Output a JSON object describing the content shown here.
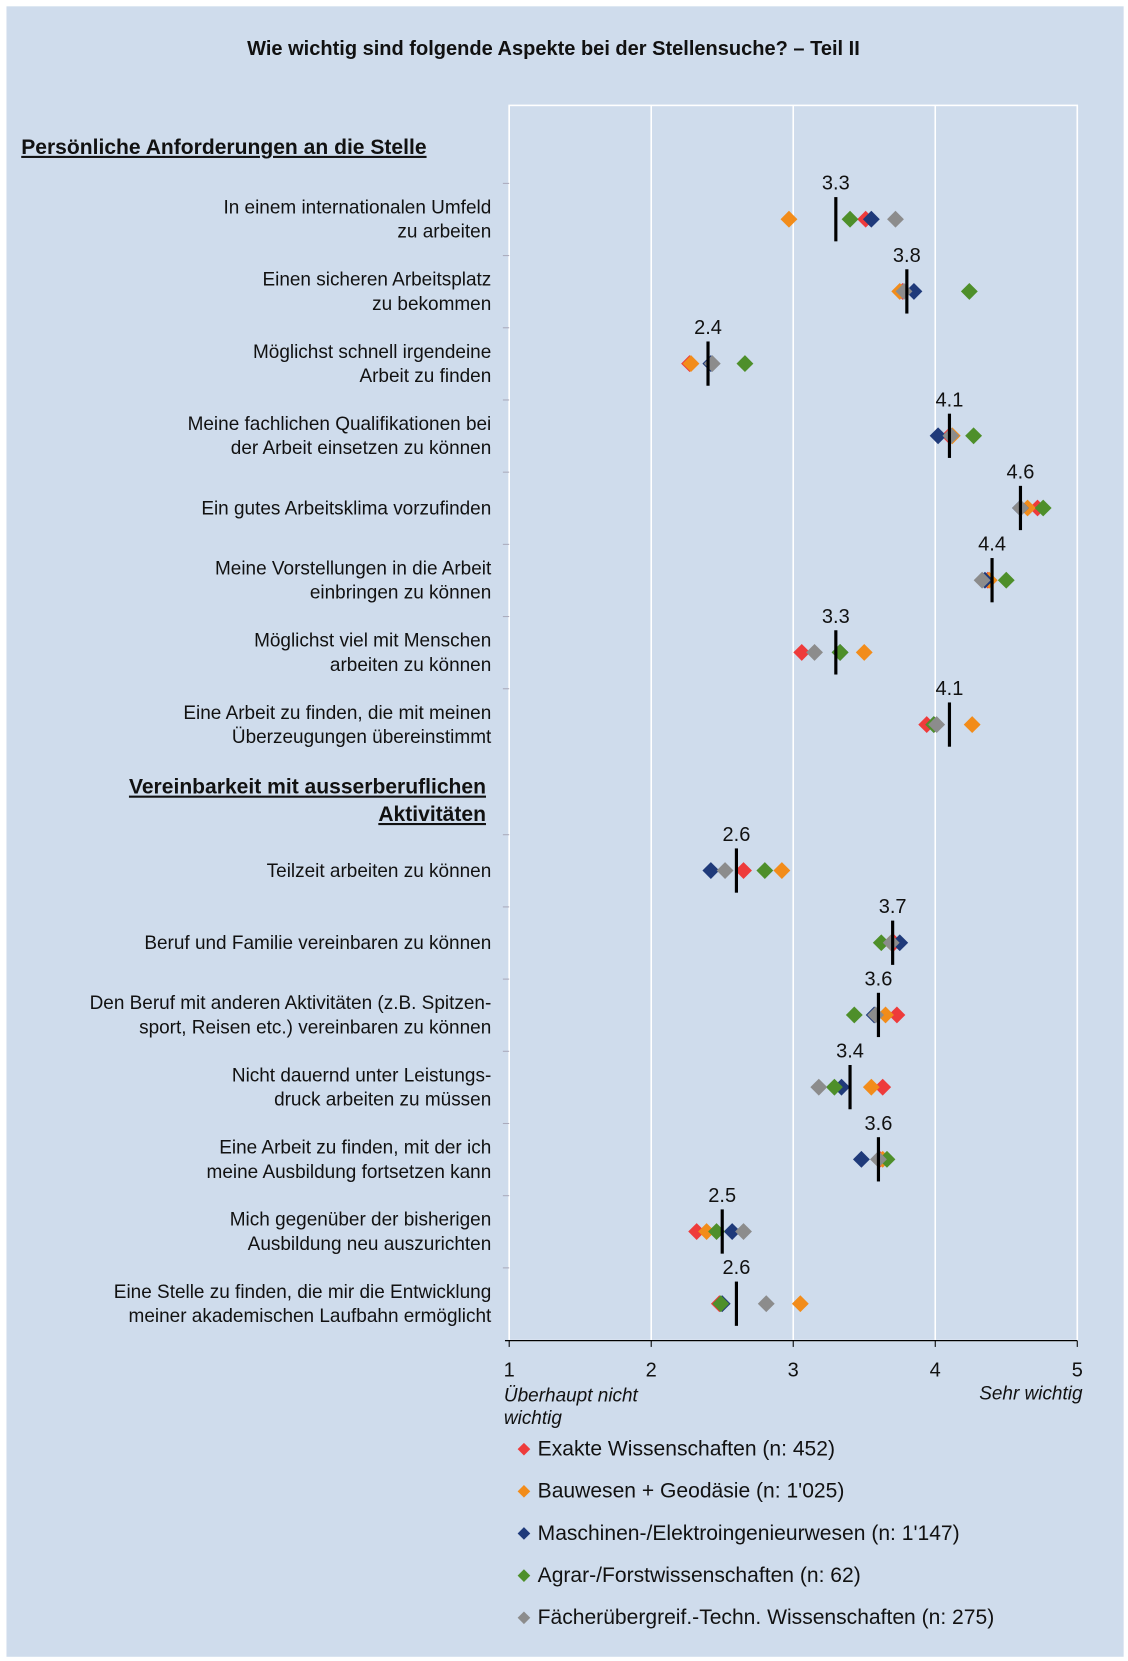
{
  "chart_data": {
    "type": "dot",
    "title": "Wie wichtig sind folgende Aspekte bei der Stellensuche? – Teil II",
    "groups": [
      {
        "label": "Persönliche Anforderungen an die Stelle",
        "categories": [
          "In einem internationalen Umfeld\nzu arbeiten",
          "Einen sicheren Arbeitsplatz\nzu bekommen",
          "Möglichst schnell irgendeine\nArbeit zu finden",
          "Meine fachlichen Qualifikationen bei\nder Arbeit einsetzen zu  können",
          "Ein gutes Arbeitsklima vorzufinden",
          "Meine Vorstellungen in die Arbeit\neinbringen zu können",
          "Möglichst viel mit Menschen\narbeiten zu können",
          "Eine Arbeit zu finden, die mit meinen\nÜberzeugungen übereinstimmt"
        ]
      },
      {
        "label": "Vereinbarkeit mit ausserberuflichen\nAktivitäten",
        "categories": [
          "Teilzeit arbeiten zu können",
          "Beruf und Familie vereinbaren zu können",
          "Den Beruf mit anderen Aktivitäten (z.B. Spitzen-\nsport, Reisen etc.) vereinbaren zu können",
          "Nicht dauernd unter Leistungs-\ndruck arbeiten zu müssen",
          "Eine Arbeit zu finden, mit der ich\nmeine Ausbildung fortsetzen kann",
          "Mich gegenüber der bisherigen\nAusbildung neu auszurichten",
          "Eine Stelle zu finden, die mir die Entwicklung\nmeiner akademischen Laufbahn ermöglicht"
        ]
      }
    ],
    "mean": [
      3.3,
      3.8,
      2.4,
      4.1,
      4.6,
      4.4,
      3.3,
      4.1,
      2.6,
      3.7,
      3.6,
      3.4,
      3.6,
      2.5,
      2.6
    ],
    "series": [
      {
        "name": "Exakte Wissenschaften (n: 452)",
        "color": "#ee3b3b",
        "values": [
          3.51,
          3.77,
          2.27,
          4.1,
          4.72,
          4.37,
          3.06,
          3.94,
          2.65,
          3.71,
          3.73,
          3.63,
          3.61,
          2.32,
          2.48
        ]
      },
      {
        "name": "Bauwesen + Geodäsie (n: 1'025)",
        "color": "#f28c1a",
        "values": [
          2.97,
          3.75,
          2.28,
          4.12,
          4.65,
          4.38,
          3.5,
          4.26,
          2.92,
          3.69,
          3.65,
          3.55,
          3.63,
          2.39,
          3.05
        ]
      },
      {
        "name": "Maschinen-/Elektroingenieurwesen (n: 1'147)",
        "color": "#1f3a7a",
        "values": [
          3.55,
          3.85,
          2.42,
          4.02,
          4.6,
          4.35,
          3.33,
          3.99,
          2.42,
          3.75,
          3.57,
          3.34,
          3.48,
          2.57,
          2.5
        ]
      },
      {
        "name": "Agrar-/Forstwissenschaften (n: 62)",
        "color": "#4e8f2a",
        "values": [
          3.4,
          4.24,
          2.66,
          4.27,
          4.76,
          4.5,
          3.33,
          3.99,
          2.8,
          3.62,
          3.43,
          3.29,
          3.66,
          2.46,
          2.49
        ]
      },
      {
        "name": "Fächerübergreif.-Techn. Wissenschaften (n: 275)",
        "color": "#8c8c8c",
        "values": [
          3.72,
          3.78,
          2.43,
          4.11,
          4.6,
          4.33,
          3.15,
          4.01,
          2.52,
          3.69,
          3.58,
          3.18,
          3.6,
          2.65,
          2.81
        ]
      }
    ],
    "xlim": [
      1,
      5
    ],
    "xticks": [
      1,
      2,
      3,
      4,
      5
    ],
    "x_low_label": "Überhaupt nicht\nwichtig",
    "x_high_label": "Sehr wichtig",
    "grid": true
  }
}
